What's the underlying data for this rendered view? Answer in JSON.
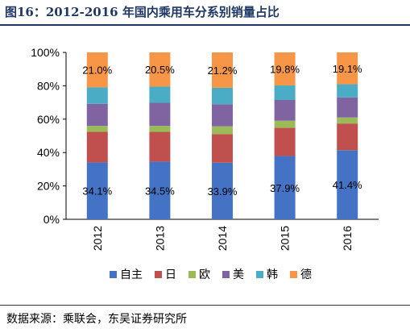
{
  "title": "图16：2012-2016 年国内乘用车分系别销量占比",
  "source": "数据来源：乘联会，东吴证券研究所",
  "chart_data": {
    "type": "bar",
    "stacked": true,
    "categories": [
      "2012",
      "2013",
      "2014",
      "2015",
      "2016"
    ],
    "series": [
      {
        "name": "自主",
        "color": "#4472c4",
        "values": [
          34.1,
          34.5,
          33.9,
          37.9,
          41.4
        ]
      },
      {
        "name": "日",
        "color": "#c0504d",
        "values": [
          18.4,
          17.9,
          17.2,
          16.9,
          16.0
        ]
      },
      {
        "name": "欧",
        "color": "#9bbb59",
        "values": [
          3.5,
          3.6,
          4.6,
          4.3,
          3.6
        ]
      },
      {
        "name": "美",
        "color": "#8064a2",
        "values": [
          13.2,
          13.8,
          13.3,
          12.4,
          12.0
        ]
      },
      {
        "name": "韩",
        "color": "#4bacc6",
        "values": [
          9.8,
          9.7,
          9.8,
          8.7,
          7.9
        ]
      },
      {
        "name": "德",
        "color": "#f79646",
        "values": [
          21.0,
          20.5,
          21.2,
          19.8,
          19.1
        ]
      }
    ],
    "data_labels": {
      "bottom": [
        "34.1%",
        "34.5%",
        "33.9%",
        "37.9%",
        "41.4%"
      ],
      "top": [
        "21.0%",
        "20.5%",
        "21.2%",
        "19.8%",
        "19.1%"
      ]
    },
    "y_ticks": [
      "0%",
      "20%",
      "40%",
      "60%",
      "80%",
      "100%"
    ],
    "ylim": [
      0,
      100
    ],
    "xlabel": "",
    "ylabel": "",
    "grid": false,
    "legend": "bottom"
  }
}
